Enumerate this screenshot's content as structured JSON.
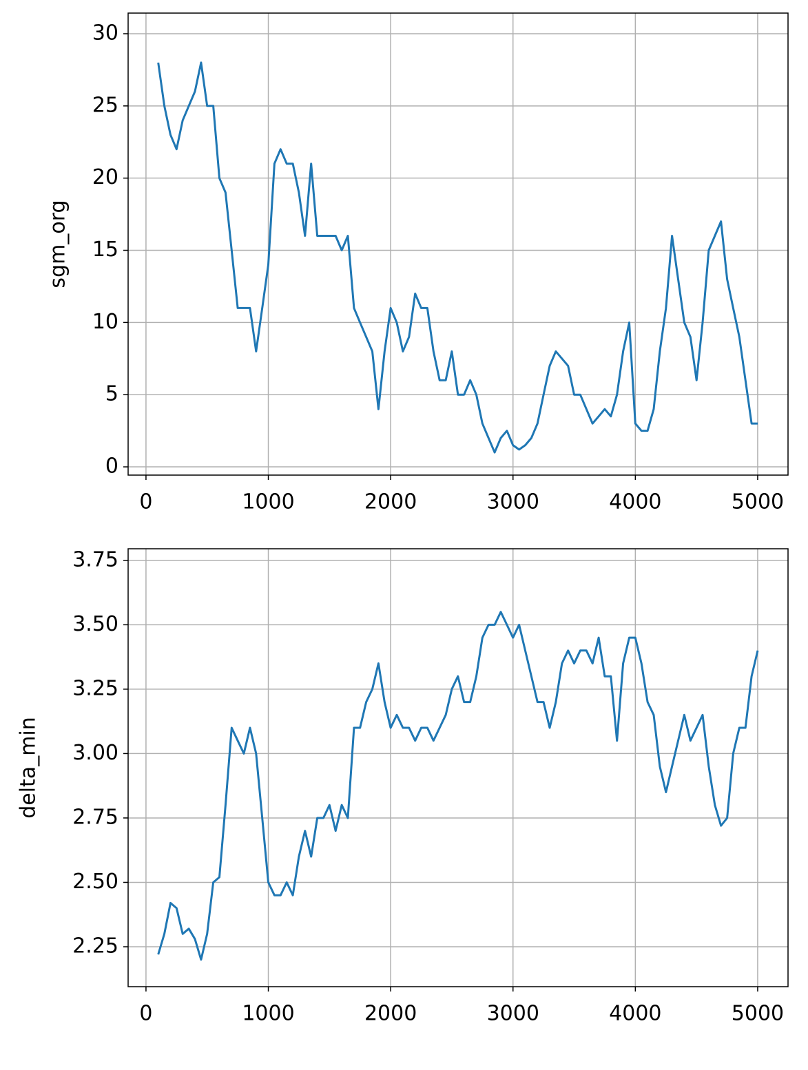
{
  "chart_data": [
    {
      "type": "line",
      "ylabel": "sgm_org",
      "color": "#1f77b4",
      "grid": true,
      "x": [
        100,
        150,
        200,
        250,
        300,
        350,
        400,
        450,
        500,
        550,
        600,
        650,
        700,
        750,
        800,
        850,
        900,
        950,
        1000,
        1050,
        1100,
        1150,
        1200,
        1250,
        1300,
        1350,
        1400,
        1450,
        1500,
        1550,
        1600,
        1650,
        1700,
        1750,
        1800,
        1850,
        1900,
        1950,
        2000,
        2050,
        2100,
        2150,
        2200,
        2250,
        2300,
        2350,
        2400,
        2450,
        2500,
        2550,
        2600,
        2650,
        2700,
        2750,
        2800,
        2850,
        2900,
        2950,
        3000,
        3050,
        3100,
        3150,
        3200,
        3250,
        3300,
        3350,
        3400,
        3450,
        3500,
        3550,
        3600,
        3650,
        3700,
        3750,
        3800,
        3850,
        3900,
        3950,
        4000,
        4050,
        4100,
        4150,
        4200,
        4250,
        4300,
        4350,
        4400,
        4450,
        4500,
        4550,
        4600,
        4650,
        4700,
        4750,
        4800,
        4850,
        4900,
        4950,
        5000
      ],
      "values": [
        28,
        25,
        23,
        22,
        24,
        25,
        26,
        28,
        25,
        25,
        20,
        19,
        15,
        11,
        11,
        11,
        8,
        11,
        14,
        21,
        22,
        21,
        21,
        19,
        16,
        21,
        16,
        16,
        16,
        16,
        15,
        16,
        11,
        10,
        9,
        8,
        4,
        8,
        11,
        10,
        8,
        9,
        12,
        11,
        11,
        8,
        6,
        6,
        8,
        5,
        5,
        6,
        5,
        3,
        2,
        1,
        2,
        2.5,
        1.5,
        1.2,
        1.5,
        2,
        3,
        5,
        7,
        8,
        7.5,
        7,
        5,
        5,
        4,
        3,
        3.5,
        4,
        3.5,
        5,
        8,
        10,
        3,
        2.5,
        2.5,
        4,
        8,
        11,
        16,
        13,
        10,
        9,
        6,
        10,
        15,
        16,
        17,
        13,
        11,
        9,
        6,
        3,
        3
      ],
      "xlim": [
        -146,
        5248
      ],
      "ylim": [
        -0.57,
        31.43
      ],
      "xticks": [
        0,
        1000,
        2000,
        3000,
        4000,
        5000
      ],
      "yticks": [
        0,
        5,
        10,
        15,
        20,
        25,
        30
      ]
    },
    {
      "type": "line",
      "ylabel": "delta_min",
      "color": "#1f77b4",
      "grid": true,
      "x": [
        100,
        150,
        200,
        250,
        300,
        350,
        400,
        450,
        500,
        550,
        600,
        650,
        700,
        750,
        800,
        850,
        900,
        950,
        1000,
        1050,
        1100,
        1150,
        1200,
        1250,
        1300,
        1350,
        1400,
        1450,
        1500,
        1550,
        1600,
        1650,
        1700,
        1750,
        1800,
        1850,
        1900,
        1950,
        2000,
        2050,
        2100,
        2150,
        2200,
        2250,
        2300,
        2350,
        2400,
        2450,
        2500,
        2550,
        2600,
        2650,
        2700,
        2750,
        2800,
        2850,
        2900,
        2950,
        3000,
        3050,
        3100,
        3150,
        3200,
        3250,
        3300,
        3350,
        3400,
        3450,
        3500,
        3550,
        3600,
        3650,
        3700,
        3750,
        3800,
        3850,
        3900,
        3950,
        4000,
        4050,
        4100,
        4150,
        4200,
        4250,
        4300,
        4350,
        4400,
        4450,
        4500,
        4550,
        4600,
        4650,
        4700,
        4750,
        4800,
        4850,
        4900,
        4950,
        5000
      ],
      "values": [
        2.22,
        2.3,
        2.42,
        2.4,
        2.3,
        2.32,
        2.28,
        2.2,
        2.3,
        2.5,
        2.52,
        2.8,
        3.1,
        3.05,
        3.0,
        3.1,
        3.0,
        2.75,
        2.5,
        2.45,
        2.45,
        2.5,
        2.45,
        2.6,
        2.7,
        2.6,
        2.75,
        2.75,
        2.8,
        2.7,
        2.8,
        2.75,
        3.1,
        3.1,
        3.2,
        3.25,
        3.35,
        3.2,
        3.1,
        3.15,
        3.1,
        3.1,
        3.05,
        3.1,
        3.1,
        3.05,
        3.1,
        3.15,
        3.25,
        3.3,
        3.2,
        3.2,
        3.3,
        3.45,
        3.5,
        3.5,
        3.55,
        3.5,
        3.45,
        3.5,
        3.4,
        3.3,
        3.2,
        3.2,
        3.1,
        3.2,
        3.35,
        3.4,
        3.35,
        3.4,
        3.4,
        3.35,
        3.45,
        3.3,
        3.3,
        3.05,
        3.35,
        3.45,
        3.45,
        3.35,
        3.2,
        3.15,
        2.95,
        2.85,
        2.95,
        3.05,
        3.15,
        3.05,
        3.1,
        3.15,
        2.95,
        2.8,
        2.72,
        2.75,
        3.0,
        3.1,
        3.1,
        3.3,
        3.4
      ],
      "xlim": [
        -146,
        5248
      ],
      "ylim": [
        2.095,
        3.795
      ],
      "xticks": [
        0,
        1000,
        2000,
        3000,
        4000,
        5000
      ],
      "yticks": [
        2.25,
        {
          "value": 2.5,
          "label": "2.50"
        },
        2.75,
        {
          "value": 3,
          "label": "3.00"
        },
        3.25,
        {
          "value": 3.5,
          "label": "3.50"
        },
        3.75
      ]
    }
  ]
}
